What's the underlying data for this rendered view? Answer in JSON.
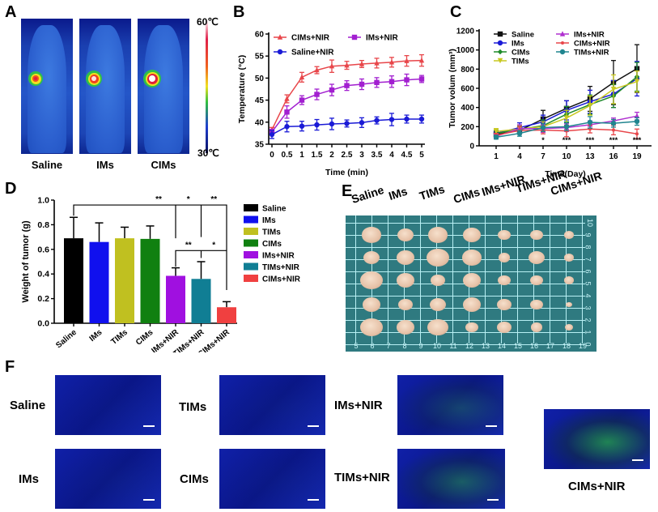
{
  "panels": {
    "A": {
      "letter": "A",
      "images": [
        {
          "label": "Saline",
          "hotspot_intensity": "low"
        },
        {
          "label": "IMs",
          "hotspot_intensity": "medium"
        },
        {
          "label": "CIMs",
          "hotspot_intensity": "high"
        }
      ],
      "colorbar": {
        "max_label": "60℃",
        "min_label": "30℃"
      }
    },
    "E": {
      "letter": "E",
      "groups": [
        "Saline",
        "IMs",
        "TIMs",
        "CIMs",
        "IMs+NIR",
        "TIMs+NIR",
        "CIMs+NIR"
      ],
      "ruler_bottom": [
        "5",
        "6",
        "7",
        "8",
        "9",
        "10",
        "11",
        "12",
        "13",
        "14",
        "15",
        "16",
        "17",
        "18",
        "19"
      ],
      "ruler_right": [
        "10",
        "9",
        "8",
        "7",
        "6",
        "5",
        "4",
        "3",
        "2",
        "1",
        "0"
      ]
    },
    "F": {
      "letter": "F",
      "images": [
        {
          "label": "Saline",
          "green": 0.02
        },
        {
          "label": "TIMs",
          "green": 0.04
        },
        {
          "label": "IMs+NIR",
          "green": 0.35
        },
        {
          "label": "IMs",
          "green": 0.04
        },
        {
          "label": "CIMs",
          "green": 0.03
        },
        {
          "label": "TIMs+NIR",
          "green": 0.5
        },
        {
          "label": "CIMs+NIR",
          "green": 0.7
        }
      ]
    }
  },
  "chart_data": [
    {
      "panel": "B",
      "type": "line",
      "title": "",
      "xlabel": "Time (min)",
      "ylabel": "Temperature (°C)",
      "x": [
        0,
        0.5,
        1,
        1.5,
        2,
        2.5,
        3,
        3.5,
        4,
        4.5,
        5
      ],
      "x_ticks": [
        "0",
        "0.5",
        "1",
        "1.5",
        "2",
        "2.5",
        "3",
        "3.5",
        "4",
        "4.5",
        "5"
      ],
      "y_ticks": [
        "35",
        "40",
        "45",
        "50",
        "55",
        "60"
      ],
      "ylim": [
        35,
        60
      ],
      "legend_position": "top",
      "series": [
        {
          "name": "CIMs+NIR",
          "color": "#e8464a",
          "marker": "triangle",
          "values": [
            38.3,
            45.3,
            50.2,
            51.8,
            52.7,
            52.9,
            53.2,
            53.4,
            53.6,
            53.9,
            54.0
          ],
          "errors": [
            0.5,
            0.9,
            1.1,
            0.8,
            1.4,
            0.9,
            0.8,
            1.1,
            1.1,
            1.2,
            1.3
          ]
        },
        {
          "name": "IMs+NIR",
          "color": "#a21fd0",
          "marker": "square",
          "values": [
            37.8,
            42.3,
            45.0,
            46.3,
            47.3,
            48.3,
            48.6,
            49.0,
            49.2,
            49.6,
            49.8
          ],
          "errors": [
            0.6,
            1.4,
            1.0,
            1.2,
            1.3,
            1.1,
            1.2,
            1.1,
            1.3,
            1.3,
            0.8
          ]
        },
        {
          "name": "Saline+NIR",
          "color": "#1a1ad6",
          "marker": "circle",
          "values": [
            37.2,
            39.0,
            39.1,
            39.4,
            39.6,
            39.7,
            39.9,
            40.4,
            40.6,
            40.7,
            40.7
          ],
          "errors": [
            0.9,
            1.2,
            1.1,
            1.2,
            1.3,
            0.8,
            1.1,
            0.8,
            1.4,
            0.9,
            0.9
          ]
        }
      ]
    },
    {
      "panel": "C",
      "type": "line",
      "title": "",
      "xlabel": "Time(Day)",
      "ylabel": "Tumor volum (mm³)",
      "x": [
        1,
        4,
        7,
        10,
        13,
        16,
        19
      ],
      "x_ticks": [
        "1",
        "4",
        "7",
        "10",
        "13",
        "16",
        "19"
      ],
      "y_ticks": [
        "0",
        "200",
        "400",
        "600",
        "800",
        "1000",
        "1200"
      ],
      "ylim": [
        0,
        1200
      ],
      "legend_position": "top-left",
      "annotations": [
        {
          "x": 7,
          "text": "*"
        },
        {
          "x": 10,
          "text": "***"
        },
        {
          "x": 13,
          "text": "***"
        },
        {
          "x": 16,
          "text": "***"
        },
        {
          "x": 19,
          "text": "***"
        }
      ],
      "series": [
        {
          "name": "Saline",
          "color": "#111111",
          "marker": "square",
          "values": [
            120,
            160,
            280,
            390,
            490,
            660,
            805
          ],
          "errors": [
            30,
            40,
            90,
            80,
            130,
            230,
            250
          ]
        },
        {
          "name": "IMs",
          "color": "#1a1ad6",
          "marker": "circle",
          "values": [
            130,
            190,
            250,
            370,
            460,
            540,
            700
          ],
          "errors": [
            30,
            50,
            70,
            100,
            120,
            140,
            180
          ]
        },
        {
          "name": "CIMs",
          "color": "#1f8a2a",
          "marker": "diamond",
          "values": [
            130,
            170,
            210,
            330,
            430,
            520,
            720
          ],
          "errors": [
            30,
            40,
            60,
            80,
            100,
            120,
            150
          ]
        },
        {
          "name": "TIMs",
          "color": "#c8c820",
          "marker": "triangle-down",
          "values": [
            150,
            175,
            200,
            290,
            420,
            590,
            670
          ],
          "errors": [
            30,
            40,
            50,
            80,
            100,
            150,
            110
          ]
        },
        {
          "name": "IMs+NIR",
          "color": "#b030d0",
          "marker": "triangle",
          "values": [
            100,
            180,
            180,
            190,
            220,
            260,
            310
          ],
          "errors": [
            20,
            40,
            40,
            40,
            40,
            30,
            40
          ]
        },
        {
          "name": "CIMs+NIR",
          "color": "#e8464a",
          "marker": "cross",
          "values": [
            110,
            160,
            165,
            155,
            175,
            165,
            125
          ],
          "errors": [
            20,
            40,
            40,
            60,
            40,
            50,
            50
          ]
        },
        {
          "name": "TIMs+NIR",
          "color": "#20858f",
          "marker": "circle",
          "values": [
            90,
            130,
            190,
            200,
            245,
            235,
            255
          ],
          "errors": [
            20,
            30,
            40,
            40,
            60,
            40,
            40
          ]
        }
      ]
    },
    {
      "panel": "D",
      "type": "bar",
      "title": "",
      "xlabel": "",
      "ylabel": "Weight of tumor (g)",
      "categories": [
        "Saline",
        "IMs",
        "TIMs",
        "CIMs",
        "IMs+NIR",
        "TIMs+NIR",
        "CIMs+NIR"
      ],
      "values": [
        0.69,
        0.66,
        0.69,
        0.685,
        0.385,
        0.36,
        0.13
      ],
      "errors": [
        0.17,
        0.155,
        0.09,
        0.105,
        0.065,
        0.14,
        0.045
      ],
      "colors": [
        "#000000",
        "#1010ee",
        "#c0c020",
        "#108010",
        "#a010e0",
        "#107e94",
        "#f04040"
      ],
      "y_ticks": [
        "0.0",
        "0.2",
        "0.4",
        "0.6",
        "0.8",
        "1.0"
      ],
      "ylim": [
        0,
        1.0
      ],
      "legend_position": "right",
      "significance": [
        {
          "from": 0,
          "to": 6,
          "text": "**",
          "level": 0.96
        },
        {
          "from": 4,
          "to": 5,
          "text": "*",
          "level": 0.96
        },
        {
          "from": 5,
          "to": 6,
          "text": "**",
          "level": 0.96
        },
        {
          "from": 4,
          "to": 5,
          "text": "**",
          "level": 0.59
        },
        {
          "from": 5,
          "to": 6,
          "text": "*",
          "level": 0.59
        }
      ]
    }
  ]
}
